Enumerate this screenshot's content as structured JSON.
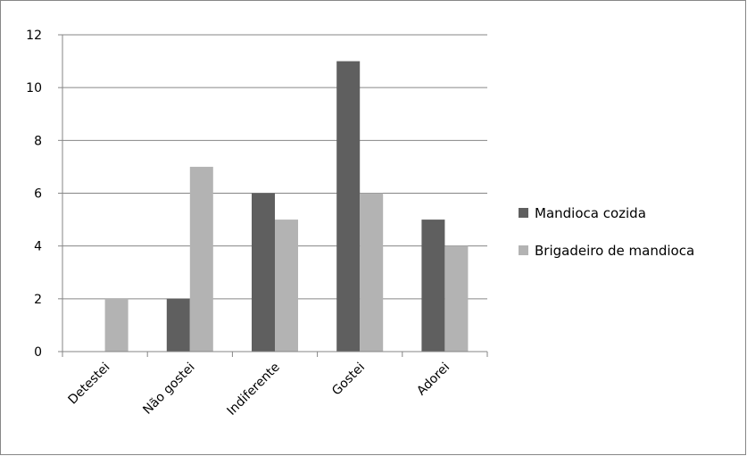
{
  "chart_data": {
    "type": "bar",
    "title": "",
    "xlabel": "",
    "ylabel": "",
    "categories": [
      "Detestei",
      "Não gostei",
      "Indiferente",
      "Gostei",
      "Adorei"
    ],
    "series": [
      {
        "name": "Mandioca cozida",
        "values": [
          0,
          2,
          6,
          11,
          5
        ],
        "color": "#5f5f5f"
      },
      {
        "name": "Brigadeiro de mandioca",
        "values": [
          2,
          7,
          5,
          6,
          4
        ],
        "color": "#b3b3b3"
      }
    ],
    "ylim": [
      0,
      12
    ],
    "yticks": [
      0,
      2,
      4,
      6,
      8,
      10,
      12
    ],
    "grid": true,
    "legend_position": "right"
  }
}
